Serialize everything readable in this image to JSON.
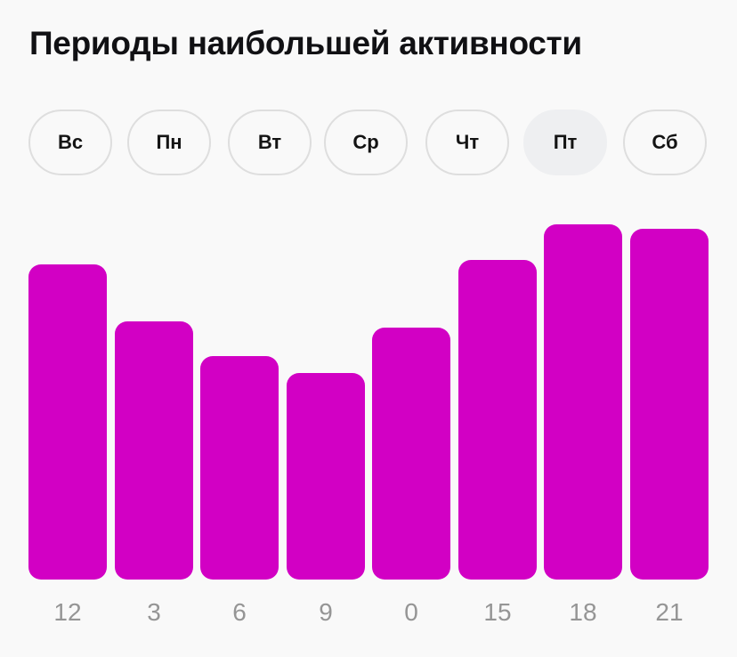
{
  "header": {
    "title": "Периоды наибольшей активности"
  },
  "days": [
    {
      "label": "Вс",
      "active": false
    },
    {
      "label": "Пн",
      "active": false
    },
    {
      "label": "Вт",
      "active": false
    },
    {
      "label": "Ср",
      "active": false
    },
    {
      "label": "Чт",
      "active": false
    },
    {
      "label": "Пт",
      "active": true
    },
    {
      "label": "Сб",
      "active": false
    }
  ],
  "colors": {
    "bar": "#d200c4",
    "active_day_bg": "#eeeff1",
    "label": "#959595"
  },
  "chart_data": {
    "type": "bar",
    "title": "Периоды наибольшей активности",
    "selected_day": "Пт",
    "categories": [
      "12",
      "3",
      "6",
      "9",
      "0",
      "15",
      "18",
      "21"
    ],
    "values": [
      354,
      290,
      251,
      232,
      283,
      359,
      399,
      394
    ],
    "values_note": "relative bar heights in px (no y-axis shown)",
    "xlabel": "",
    "ylabel": "",
    "grid": false,
    "legend": null
  }
}
